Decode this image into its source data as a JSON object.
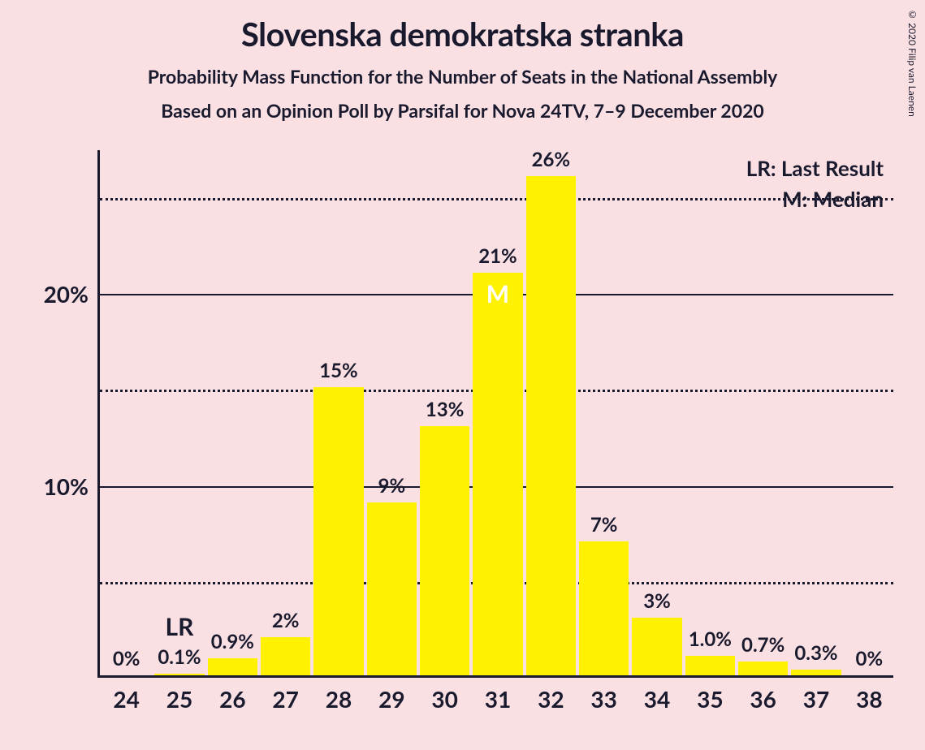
{
  "copyright": "© 2020 Filip van Laenen",
  "title": "Slovenska demokratska stranka",
  "subtitle1": "Probability Mass Function for the Number of Seats in the National Assembly",
  "subtitle2": "Based on an Opinion Poll by Parsifal for Nova 24TV, 7–9 December 2020",
  "legend": {
    "lr": "LR: Last Result",
    "m": "M: Median"
  },
  "chart": {
    "type": "bar",
    "bar_color": "#fff200",
    "background_color": "#fae0e3",
    "axis_color": "#1a1a2e",
    "grid_solid_color": "#1a1a2e",
    "grid_dot_color": "#1a1a2e",
    "text_color": "#1a1a2e",
    "median_text_color": "#ffffff",
    "title_fontsize": 40,
    "subtitle_fontsize": 23,
    "label_fontsize": 24,
    "tick_fontsize": 28,
    "legend_fontsize": 26,
    "bar_width_ratio": 0.94,
    "ylim": [
      0,
      27.5
    ],
    "y_major_ticks": [
      10,
      20
    ],
    "y_minor_ticks": [
      5,
      15,
      25
    ],
    "categories": [
      "24",
      "25",
      "26",
      "27",
      "28",
      "29",
      "30",
      "31",
      "32",
      "33",
      "34",
      "35",
      "36",
      "37",
      "38"
    ],
    "values": [
      0,
      0.1,
      0.9,
      2,
      15,
      9,
      13,
      21,
      26,
      7,
      3,
      1.0,
      0.7,
      0.3,
      0
    ],
    "display_labels": [
      "0%",
      "0.1%",
      "0.9%",
      "2%",
      "15%",
      "9%",
      "13%",
      "21%",
      "26%",
      "7%",
      "3%",
      "1.0%",
      "0.7%",
      "0.3%",
      "0%"
    ],
    "last_result_index": 1,
    "last_result_tag": "LR",
    "median_index": 7,
    "median_tag": "M"
  }
}
